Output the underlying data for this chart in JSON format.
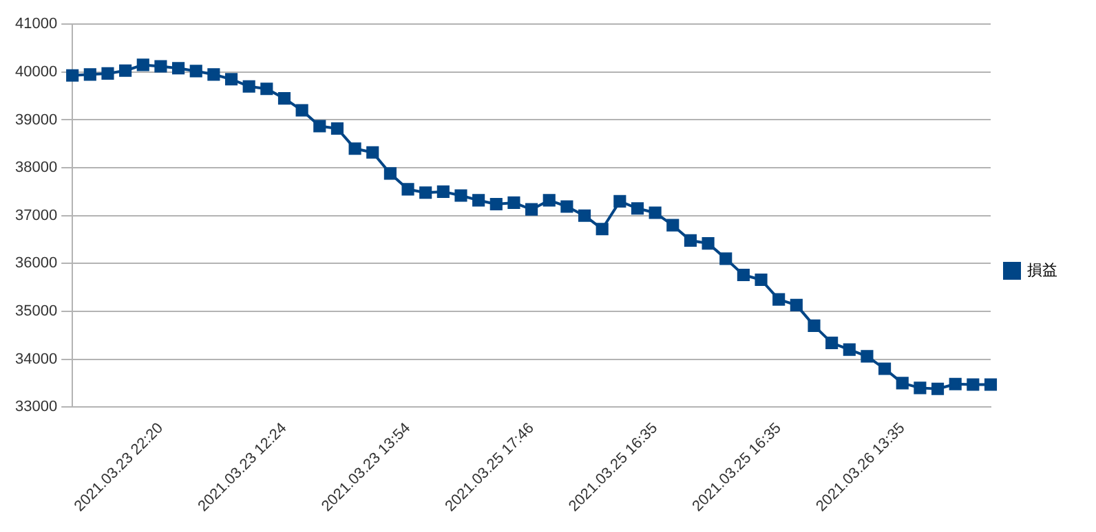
{
  "chart_data": {
    "type": "line",
    "categories": [
      null,
      null,
      null,
      null,
      null,
      "2021.03.23 22:20",
      null,
      null,
      null,
      null,
      null,
      null,
      "2021.03.23 12:24",
      null,
      null,
      null,
      null,
      null,
      null,
      "2021.03.23 13:54",
      null,
      null,
      null,
      null,
      null,
      null,
      "2021.03.25 17:46",
      null,
      null,
      null,
      null,
      null,
      null,
      "2021.03.25 16:35",
      null,
      null,
      null,
      null,
      null,
      null,
      "2021.03.25 16:35",
      null,
      null,
      null,
      null,
      null,
      null,
      "2021.03.26 13:35",
      null,
      null,
      null,
      null,
      null
    ],
    "series": [
      {
        "name": "損益",
        "color": "#004586",
        "values": [
          39930,
          39950,
          39970,
          40030,
          40150,
          40120,
          40080,
          40020,
          39950,
          39850,
          39700,
          39650,
          39450,
          39200,
          38870,
          38820,
          38400,
          38320,
          37880,
          37550,
          37480,
          37500,
          37420,
          37320,
          37240,
          37270,
          37130,
          37320,
          37190,
          37000,
          36720,
          37300,
          37150,
          37060,
          36800,
          36480,
          36420,
          36100,
          35760,
          35660,
          35250,
          35130,
          34700,
          34340,
          34200,
          34060,
          33800,
          33500,
          33400,
          33380,
          33480,
          33470,
          33470
        ]
      }
    ],
    "ylim": [
      33000,
      41000
    ],
    "yticks": [
      33000,
      34000,
      35000,
      36000,
      37000,
      38000,
      39000,
      40000,
      41000
    ],
    "grid": "y",
    "legend": "right",
    "marker": "square",
    "line_style": "solid"
  }
}
